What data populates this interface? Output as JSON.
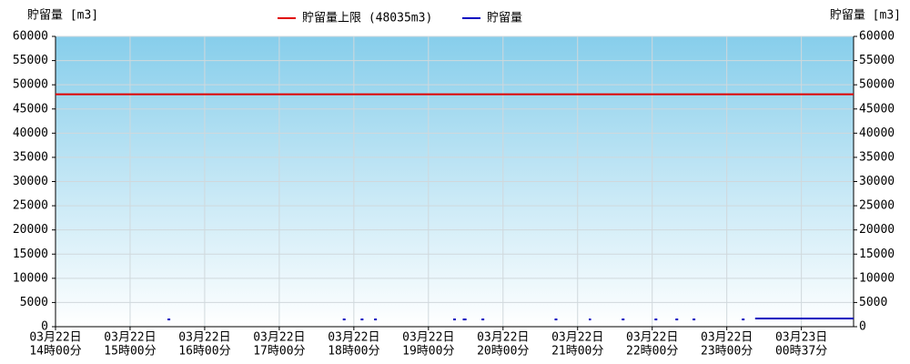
{
  "chart_data": {
    "type": "line",
    "y_label": "貯留量 [m3]",
    "y2_label": "貯留量 [m3]",
    "limit": {
      "name": "貯留量上限 (48035m3)",
      "value": 48035,
      "color": "#e00000"
    },
    "series": [
      {
        "name": "貯留量",
        "color": "#0000c0",
        "x": [
          1.52,
          null,
          3.87,
          null,
          4.11,
          null,
          4.29,
          null,
          5.35,
          null,
          5.46,
          5.51,
          null,
          5.73,
          null,
          6.71,
          null,
          7.15,
          7.18,
          null,
          7.61,
          null,
          8.05,
          null,
          8.33,
          null,
          8.56,
          null,
          9.22,
          null,
          9.38,
          10.0,
          10.7
        ],
        "values": [
          1500,
          null,
          1500,
          null,
          1500,
          null,
          1500,
          null,
          1500,
          null,
          1500,
          1500,
          null,
          1500,
          null,
          1500,
          null,
          1500,
          1500,
          null,
          1500,
          null,
          1500,
          null,
          1500,
          null,
          1500,
          null,
          1500,
          null,
          1700,
          1700,
          1700
        ]
      }
    ],
    "xlim": [
      0,
      10.7
    ],
    "xticks": [
      {
        "value": 0,
        "label": [
          "03月22日",
          "14時00分"
        ]
      },
      {
        "value": 1,
        "label": [
          "03月22日",
          "15時00分"
        ]
      },
      {
        "value": 2,
        "label": [
          "03月22日",
          "16時00分"
        ]
      },
      {
        "value": 3,
        "label": [
          "03月22日",
          "17時00分"
        ]
      },
      {
        "value": 4,
        "label": [
          "03月22日",
          "18時00分"
        ]
      },
      {
        "value": 5,
        "label": [
          "03月22日",
          "19時00分"
        ]
      },
      {
        "value": 6,
        "label": [
          "03月22日",
          "20時00分"
        ]
      },
      {
        "value": 7,
        "label": [
          "03月22日",
          "21時00分"
        ]
      },
      {
        "value": 8,
        "label": [
          "03月22日",
          "22時00分"
        ]
      },
      {
        "value": 9,
        "label": [
          "03月22日",
          "23時00分"
        ]
      },
      {
        "value": 10,
        "label": [
          "03月23日",
          "00時37分"
        ]
      }
    ],
    "ylim": [
      0,
      60000
    ],
    "yticks": [
      0,
      5000,
      10000,
      15000,
      20000,
      25000,
      30000,
      35000,
      40000,
      45000,
      50000,
      55000,
      60000
    ],
    "y2lim": [
      0,
      60000
    ],
    "y2ticks": [
      0,
      5000,
      10000,
      15000,
      20000,
      25000,
      30000,
      35000,
      40000,
      45000,
      50000,
      55000,
      60000
    ],
    "grid": true
  }
}
